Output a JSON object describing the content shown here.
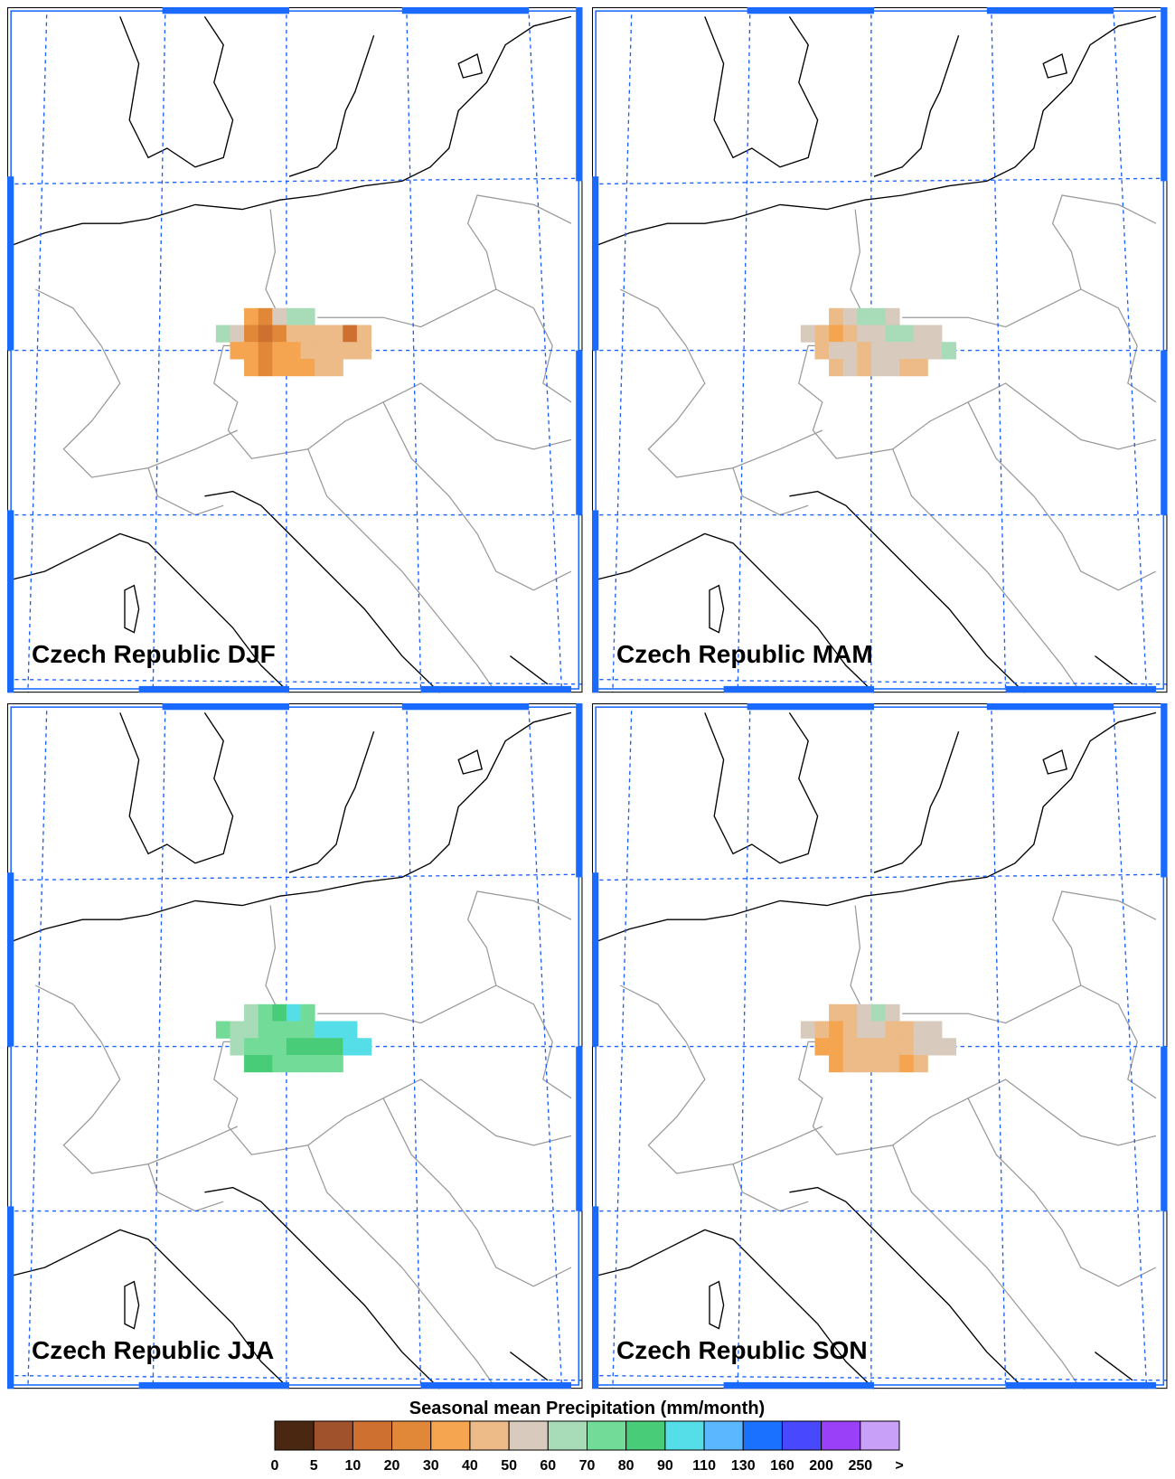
{
  "panels": [
    {
      "title": "Czech Republic DJF",
      "cells": [
        [
          null,
          null,
          4,
          3,
          6,
          7,
          7,
          null,
          null,
          null,
          null
        ],
        [
          7,
          6,
          3,
          2,
          3,
          5,
          5,
          5,
          5,
          2,
          5
        ],
        [
          null,
          4,
          4,
          3,
          4,
          4,
          5,
          5,
          5,
          5,
          5
        ],
        [
          null,
          null,
          4,
          3,
          4,
          4,
          4,
          5,
          5,
          null,
          null
        ]
      ]
    },
    {
      "title": "Czech Republic MAM",
      "cells": [
        [
          null,
          null,
          5,
          6,
          7,
          7,
          6,
          null,
          null,
          null,
          null
        ],
        [
          6,
          5,
          4,
          5,
          6,
          6,
          7,
          7,
          6,
          6,
          null
        ],
        [
          null,
          5,
          6,
          6,
          5,
          6,
          6,
          6,
          6,
          6,
          7
        ],
        [
          null,
          null,
          5,
          6,
          5,
          6,
          6,
          5,
          5,
          null,
          null
        ]
      ]
    },
    {
      "title": "Czech Republic JJA",
      "cells": [
        [
          null,
          null,
          7,
          8,
          9,
          10,
          8,
          null,
          null,
          null,
          null
        ],
        [
          8,
          7,
          7,
          8,
          8,
          8,
          8,
          10,
          10,
          10,
          null
        ],
        [
          null,
          7,
          8,
          8,
          8,
          9,
          9,
          9,
          9,
          10,
          10
        ],
        [
          null,
          null,
          9,
          9,
          8,
          8,
          8,
          8,
          8,
          null,
          null
        ]
      ]
    },
    {
      "title": "Czech Republic SON",
      "cells": [
        [
          null,
          null,
          5,
          5,
          6,
          7,
          6,
          null,
          null,
          null,
          null
        ],
        [
          6,
          5,
          4,
          5,
          6,
          6,
          5,
          5,
          6,
          6,
          null
        ],
        [
          null,
          4,
          4,
          5,
          5,
          5,
          5,
          5,
          6,
          6,
          6
        ],
        [
          null,
          null,
          4,
          5,
          5,
          5,
          5,
          4,
          5,
          null,
          null
        ]
      ]
    }
  ],
  "colorbar": {
    "title": "Seasonal mean Precipitation (mm/month)",
    "colors": [
      "#4a2710",
      "#a0522d",
      "#cd7030",
      "#e08838",
      "#f5a550",
      "#ecbb88",
      "#d8cbbd",
      "#a8dbb8",
      "#72db98",
      "#48cc78",
      "#55dde8",
      "#5bb7ff",
      "#1a70ff",
      "#4848ff",
      "#9a40f8",
      "#c8a0f8"
    ],
    "labels": [
      0,
      5,
      10,
      20,
      30,
      40,
      50,
      60,
      70,
      80,
      90,
      110,
      130,
      160,
      200,
      250,
      ">"
    ]
  }
}
